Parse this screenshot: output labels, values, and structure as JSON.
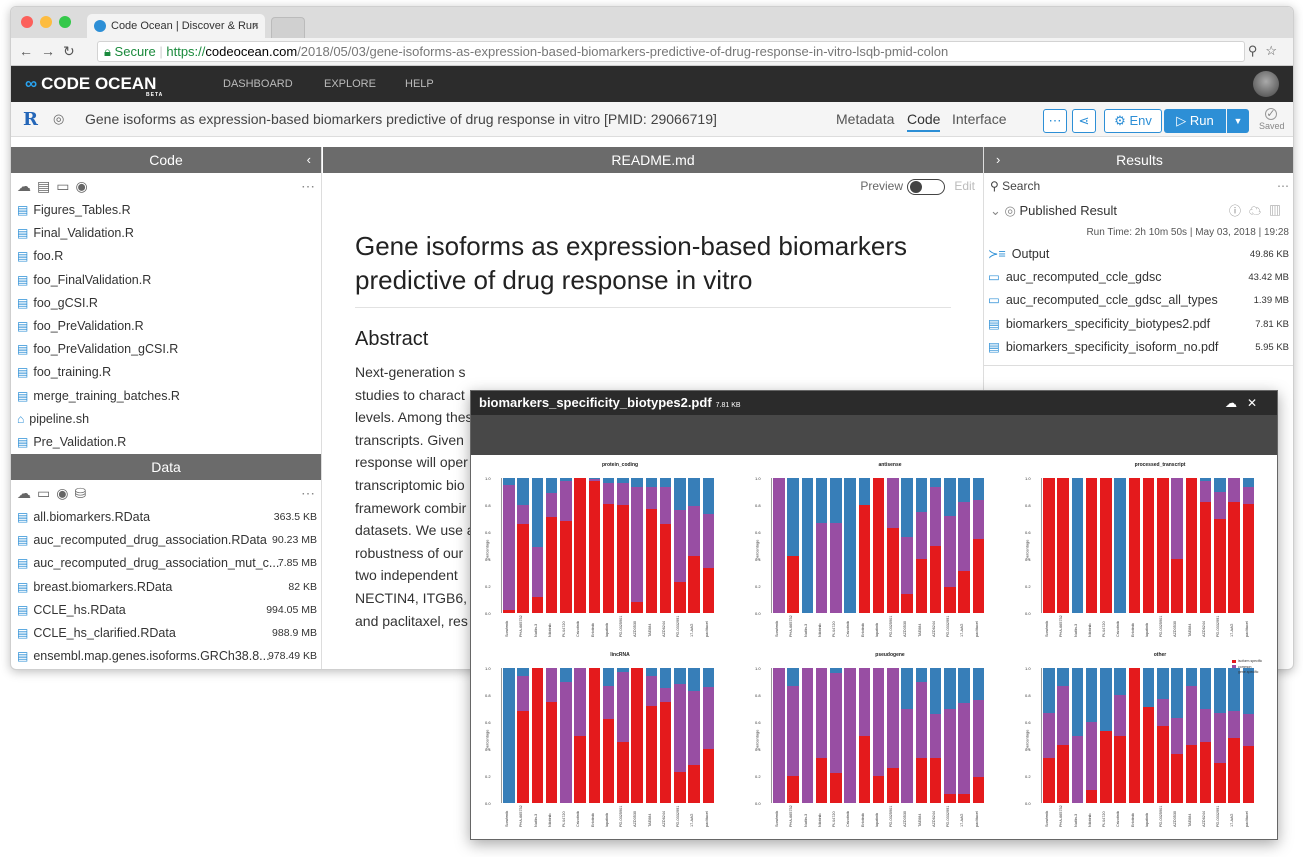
{
  "browser": {
    "tab_title": "Code Ocean | Discover & Run",
    "tab_close": "×",
    "secure_label": "Secure",
    "url_scheme": "https://",
    "url_host": "codeocean.com",
    "url_path": "/2018/05/03/gene-isoforms-as-expression-based-biomarkers-predictive-of-drug-response-in-vitro-lsqb-pmid-colon"
  },
  "appnav": {
    "logo": "CODE OCEAN",
    "beta": "BETA",
    "links": [
      "DASHBOARD",
      "EXPLORE",
      "HELP"
    ]
  },
  "capsule": {
    "title": "Gene isoforms as expression-based biomarkers predictive of drug response in vitro [PMID: 29066719]",
    "tabs": [
      "Metadata",
      "Code",
      "Interface"
    ],
    "active_tab": "Code",
    "env_label": "Env",
    "run_label": "Run",
    "saved_label": "Saved"
  },
  "code_panel": {
    "title": "Code",
    "files": [
      {
        "name": "Figures_Tables.R",
        "icon": "file-icon"
      },
      {
        "name": "Final_Validation.R",
        "icon": "file-icon"
      },
      {
        "name": "foo.R",
        "icon": "file-icon"
      },
      {
        "name": "foo_FinalValidation.R",
        "icon": "file-icon"
      },
      {
        "name": "foo_gCSI.R",
        "icon": "file-icon"
      },
      {
        "name": "foo_PreValidation.R",
        "icon": "file-icon"
      },
      {
        "name": "foo_PreValidation_gCSI.R",
        "icon": "file-icon"
      },
      {
        "name": "foo_training.R",
        "icon": "file-icon"
      },
      {
        "name": "merge_training_batches.R",
        "icon": "file-icon"
      },
      {
        "name": "pipeline.sh",
        "icon": "home-icon"
      },
      {
        "name": "Pre_Validation.R",
        "icon": "file-icon"
      }
    ]
  },
  "data_panel": {
    "title": "Data",
    "files": [
      {
        "name": "all.biomarkers.RData",
        "size": "363.5 KB"
      },
      {
        "name": "auc_recomputed_drug_association.RData",
        "size": "90.23 MB"
      },
      {
        "name": "auc_recomputed_drug_association_mut_c...",
        "size": "7.85 MB"
      },
      {
        "name": "breast.biomarkers.RData",
        "size": "82 KB"
      },
      {
        "name": "CCLE_hs.RData",
        "size": "994.05 MB"
      },
      {
        "name": "CCLE_hs_clarified.RData",
        "size": "988.9 MB"
      },
      {
        "name": "ensembl.map.genes.isoforms.GRCh38.8...",
        "size": "978.49 KB"
      }
    ]
  },
  "readme": {
    "header": "README.md",
    "preview_label": "Preview",
    "edit_label": "Edit",
    "title": "Gene isoforms as expression-based biomarkers predictive of drug response in vitro",
    "abstract_heading": "Abstract",
    "abstract_lines": [
      "Next-generation s",
      "studies to charact",
      "levels. Among thes",
      "transcripts. Given",
      "response will oper",
      "transcriptomic bio",
      "framework combir",
      "datasets. We use a",
      "robustness of our",
      "two independent",
      "NECTIN4, ITGB6, a",
      "and paclitaxel, res"
    ]
  },
  "results_panel": {
    "title": "Results",
    "search_placeholder": "Search",
    "published_label": "Published Result",
    "run_time": "Run Time: 2h 10m 50s | May 03, 2018 | 19:28",
    "items": [
      {
        "name": "Output",
        "size": "49.86 KB",
        "icon": "output-icon"
      },
      {
        "name": "auc_recomputed_ccle_gdsc",
        "size": "43.42 MB",
        "icon": "folder-icon"
      },
      {
        "name": "auc_recomputed_ccle_gdsc_all_types",
        "size": "1.39 MB",
        "icon": "folder-icon"
      },
      {
        "name": "biomarkers_specificity_biotypes2.pdf",
        "size": "7.81 KB",
        "icon": "file-icon"
      },
      {
        "name": "biomarkers_specificity_isoform_no.pdf",
        "size": "5.95 KB",
        "icon": "file-icon"
      }
    ]
  },
  "pdf_viewer": {
    "filename": "biomarkers_specificity_biotypes2.pdf",
    "size": "7.81 KB"
  },
  "chart_data": {
    "type": "bar",
    "stacked": true,
    "ylabel": "percentage",
    "ylim": [
      0,
      1
    ],
    "yticks": [
      "0.0",
      "0.2",
      "0.4",
      "0.6",
      "0.8",
      "1.0"
    ],
    "categories": [
      "Sorafenib",
      "PHA-665752",
      "Nutlin-3",
      "Nilotinib",
      "PLX4720",
      "Crizotinib",
      "Erlotinib",
      "lapatinib",
      "PD-0325901",
      "AZD0530",
      "TAE684",
      "AZD6244",
      "PD-0332991",
      "17-AAG",
      "paclitaxel"
    ],
    "legend": [
      "isoform.specific",
      "common",
      "gene.specific"
    ],
    "colors": {
      "isoform.specific": "#e41a1c",
      "common": "#984ea3",
      "gene.specific": "#377eb8"
    },
    "panels": [
      {
        "title": "protein_coding",
        "isoform": [
          0.02,
          0.66,
          0.12,
          0.71,
          0.68,
          1.0,
          0.98,
          0.81,
          0.8,
          0.08,
          0.77,
          0.66,
          0.23,
          0.42,
          0.33
        ],
        "common": [
          0.93,
          0.14,
          0.37,
          0.18,
          0.3,
          0.0,
          0.01,
          0.15,
          0.16,
          0.85,
          0.16,
          0.27,
          0.53,
          0.37,
          0.4
        ]
      },
      {
        "title": "antisense",
        "isoform": [
          0.0,
          0.42,
          0.0,
          0.0,
          0.0,
          0.0,
          0.8,
          1.0,
          0.63,
          0.14,
          0.4,
          0.5,
          0.19,
          0.31,
          0.55
        ],
        "common": [
          1.0,
          0.0,
          0.0,
          0.67,
          0.67,
          0.0,
          0.0,
          0.0,
          0.37,
          0.42,
          0.35,
          0.43,
          0.53,
          0.51,
          0.29
        ]
      },
      {
        "title": "processed_transcript",
        "isoform": [
          1.0,
          1.0,
          0.0,
          1.0,
          1.0,
          0.0,
          1.0,
          1.0,
          1.0,
          0.4,
          1.0,
          0.82,
          0.7,
          0.82,
          0.81
        ],
        "common": [
          0.0,
          0.0,
          0.0,
          0.0,
          0.0,
          0.0,
          0.0,
          0.0,
          0.0,
          0.6,
          0.0,
          0.16,
          0.2,
          0.18,
          0.12
        ]
      },
      {
        "title": "lincRNA",
        "isoform": [
          0.0,
          0.68,
          1.0,
          0.75,
          0.0,
          0.5,
          1.0,
          0.62,
          0.45,
          1.0,
          0.72,
          0.75,
          0.23,
          0.28,
          0.4
        ],
        "common": [
          0.0,
          0.26,
          0.0,
          0.25,
          0.9,
          0.5,
          0.0,
          0.25,
          0.52,
          0.0,
          0.22,
          0.1,
          0.65,
          0.55,
          0.46
        ]
      },
      {
        "title": "pseudogene",
        "isoform": [
          0.0,
          0.2,
          0.0,
          0.33,
          0.22,
          0.0,
          0.5,
          0.2,
          0.26,
          0.0,
          0.33,
          0.33,
          0.07,
          0.07,
          0.19
        ],
        "common": [
          1.0,
          0.67,
          1.0,
          0.67,
          0.74,
          1.0,
          0.5,
          0.8,
          0.74,
          0.7,
          0.57,
          0.33,
          0.63,
          0.67,
          0.57
        ]
      },
      {
        "title": "other",
        "isoform": [
          0.33,
          0.43,
          0.0,
          0.1,
          0.53,
          0.5,
          1.0,
          0.71,
          0.57,
          0.36,
          0.43,
          0.45,
          0.3,
          0.48,
          0.42
        ],
        "common": [
          0.34,
          0.44,
          0.5,
          0.5,
          0.0,
          0.3,
          0.0,
          0.0,
          0.2,
          0.27,
          0.44,
          0.25,
          0.37,
          0.2,
          0.24
        ]
      }
    ]
  }
}
